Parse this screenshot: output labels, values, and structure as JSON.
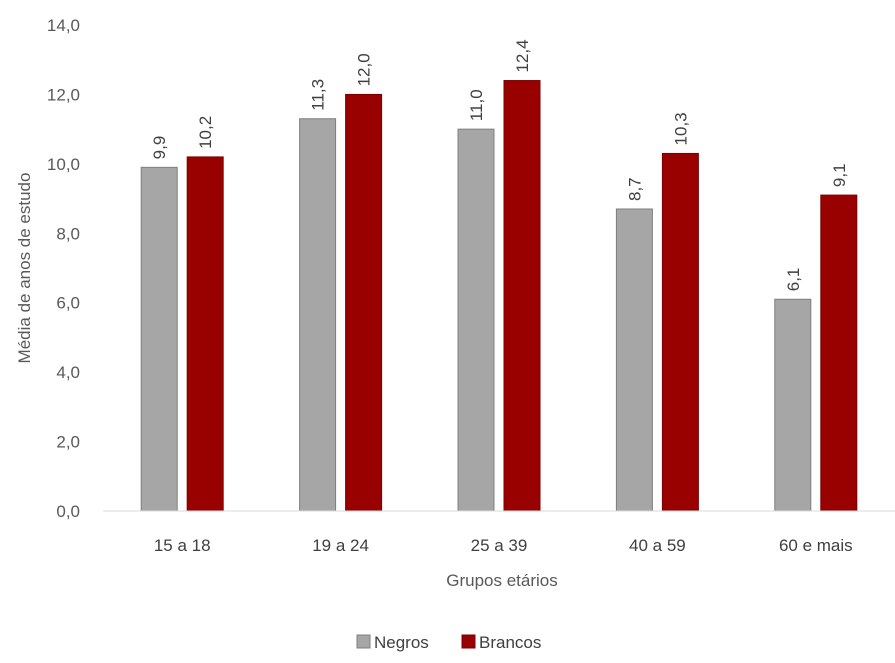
{
  "chart_data": {
    "type": "bar",
    "title": "",
    "xlabel": "Grupos etários",
    "ylabel": "Média de anos de estudo",
    "categories": [
      "15 a 18",
      "19 a 24",
      "25 a 39",
      "40 a 59",
      "60 e mais"
    ],
    "series": [
      {
        "name": "Negros",
        "color": "#a6a6a6",
        "border": "#7f7f7f",
        "values": [
          9.9,
          11.3,
          11.0,
          8.7,
          6.1
        ],
        "labels": [
          "9,9",
          "11,3",
          "11,0",
          "8,7",
          "6,1"
        ]
      },
      {
        "name": "Brancos",
        "color": "#990000",
        "border": "#7a0000",
        "values": [
          10.2,
          12.0,
          12.4,
          10.3,
          9.1
        ],
        "labels": [
          "10,2",
          "12,0",
          "12,4",
          "10,3",
          "9,1"
        ]
      }
    ],
    "ylim": [
      0,
      14
    ],
    "yticks": [
      0,
      2,
      4,
      6,
      8,
      10,
      12,
      14
    ],
    "ytick_labels": [
      "0,0",
      "2,0",
      "4,0",
      "6,0",
      "8,0",
      "10,0",
      "12,0",
      "14,0"
    ],
    "grid": false,
    "legend_position": "bottom-center",
    "data_label_orientation": "vertical"
  }
}
